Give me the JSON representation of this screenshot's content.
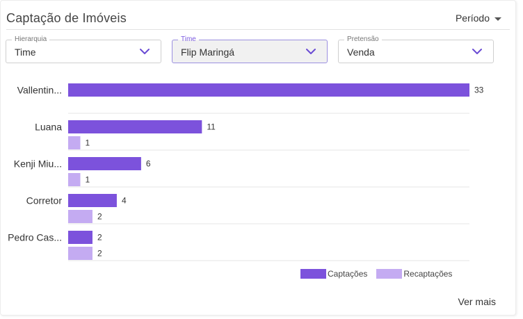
{
  "header": {
    "title": "Captação de Imóveis",
    "period_label": "Período"
  },
  "filters": [
    {
      "label": "Hierarquia",
      "value": "Time"
    },
    {
      "label": "Time",
      "value": "Flip Maringá"
    },
    {
      "label": "Pretensão",
      "value": "Venda"
    }
  ],
  "colors": {
    "captacoes": "#7c52dc",
    "recaptacoes": "#c4abf2",
    "accent": "#7b5be0"
  },
  "chart_data": {
    "type": "bar",
    "orientation": "horizontal",
    "categories": [
      "Vallentin...",
      "Luana",
      "Kenji Miu...",
      "Corretor",
      "Pedro Cas..."
    ],
    "series": [
      {
        "name": "Captações",
        "values": [
          33,
          11,
          6,
          4,
          2
        ]
      },
      {
        "name": "Recaptações",
        "values": [
          null,
          1,
          1,
          2,
          2
        ]
      }
    ],
    "xlim": [
      0,
      33
    ],
    "legend": "bottom-right",
    "grid": false
  },
  "footer": {
    "see_more": "Ver mais"
  }
}
